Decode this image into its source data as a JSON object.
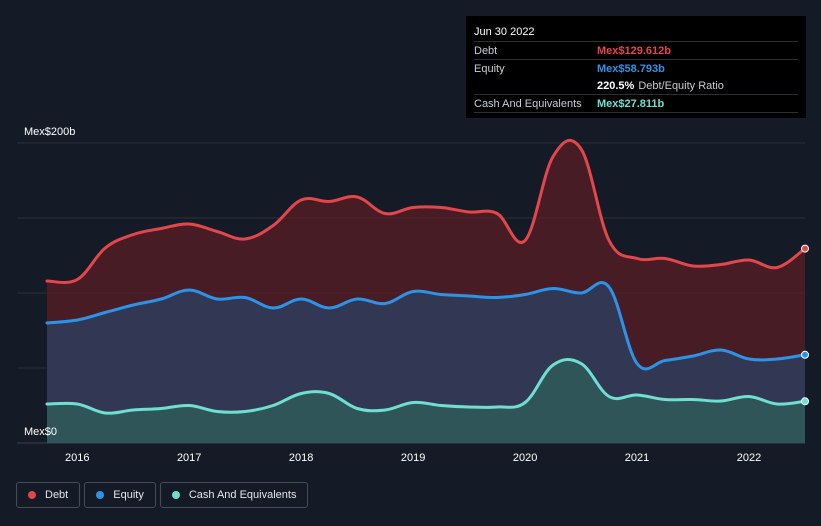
{
  "colors": {
    "background": "#151b26",
    "debt": "#e2474b",
    "equity": "#2e93e6",
    "cash": "#6fe0cf"
  },
  "tooltip": {
    "date": "Jun 30 2022",
    "debt_label": "Debt",
    "debt_value": "Mex$129.612b",
    "equity_label": "Equity",
    "equity_value": "Mex$58.793b",
    "ratio_value": "220.5%",
    "ratio_label": "Debt/Equity Ratio",
    "cash_label": "Cash And Equivalents",
    "cash_value": "Mex$27.811b"
  },
  "legend": [
    {
      "label": "Debt",
      "color": "#e2474b"
    },
    {
      "label": "Equity",
      "color": "#2e93e6"
    },
    {
      "label": "Cash And Equivalents",
      "color": "#6fe0cf"
    }
  ],
  "chart_data": {
    "type": "area",
    "title": "",
    "xlabel": "",
    "ylabel": "",
    "ylim": [
      0,
      200
    ],
    "xlim": [
      2015.73,
      2022.5
    ],
    "y_tick_labels": [
      "Mex$0",
      "Mex$200b"
    ],
    "x_tick_labels": [
      "2016",
      "2017",
      "2018",
      "2019",
      "2020",
      "2021",
      "2022"
    ],
    "x_ticks": [
      2016,
      2017,
      2018,
      2019,
      2020,
      2021,
      2022
    ],
    "grid": true,
    "legend_position": "bottom-left",
    "series": [
      {
        "name": "Debt",
        "x": [
          2015.73,
          2016.0,
          2016.25,
          2016.5,
          2016.75,
          2017.0,
          2017.25,
          2017.5,
          2017.75,
          2018.0,
          2018.25,
          2018.5,
          2018.75,
          2019.0,
          2019.25,
          2019.5,
          2019.75,
          2020.0,
          2020.25,
          2020.5,
          2020.75,
          2021.0,
          2021.25,
          2021.5,
          2021.75,
          2022.0,
          2022.25,
          2022.5
        ],
        "values": [
          108,
          109,
          130,
          139,
          143,
          146,
          141,
          136,
          145,
          162,
          161,
          164,
          153,
          157,
          157,
          154,
          153,
          135,
          191,
          196,
          135,
          123,
          123,
          118,
          119,
          122,
          117,
          129.6
        ]
      },
      {
        "name": "Equity",
        "x": [
          2015.73,
          2016.0,
          2016.25,
          2016.5,
          2016.75,
          2017.0,
          2017.25,
          2017.5,
          2017.75,
          2018.0,
          2018.25,
          2018.5,
          2018.75,
          2019.0,
          2019.25,
          2019.5,
          2019.75,
          2020.0,
          2020.25,
          2020.5,
          2020.75,
          2021.0,
          2021.25,
          2021.5,
          2021.75,
          2022.0,
          2022.25,
          2022.5
        ],
        "values": [
          80,
          82,
          87,
          92,
          96,
          102,
          96,
          97,
          90,
          96,
          90,
          96,
          93,
          101,
          99,
          98,
          97,
          99,
          103,
          100,
          104,
          53,
          55,
          58,
          62,
          56,
          56,
          58.8
        ]
      },
      {
        "name": "Cash And Equivalents",
        "x": [
          2015.73,
          2016.0,
          2016.25,
          2016.5,
          2016.75,
          2017.0,
          2017.25,
          2017.5,
          2017.75,
          2018.0,
          2018.25,
          2018.5,
          2018.75,
          2019.0,
          2019.25,
          2019.5,
          2019.75,
          2020.0,
          2020.25,
          2020.5,
          2020.75,
          2021.0,
          2021.25,
          2021.5,
          2021.75,
          2022.0,
          2022.25,
          2022.5
        ],
        "values": [
          26,
          26,
          20,
          22,
          23,
          25,
          21,
          21,
          25,
          33,
          33,
          23,
          22,
          27,
          25,
          24,
          24,
          27,
          52,
          53,
          31,
          32,
          29,
          29,
          28,
          31,
          26,
          27.8
        ]
      }
    ]
  }
}
